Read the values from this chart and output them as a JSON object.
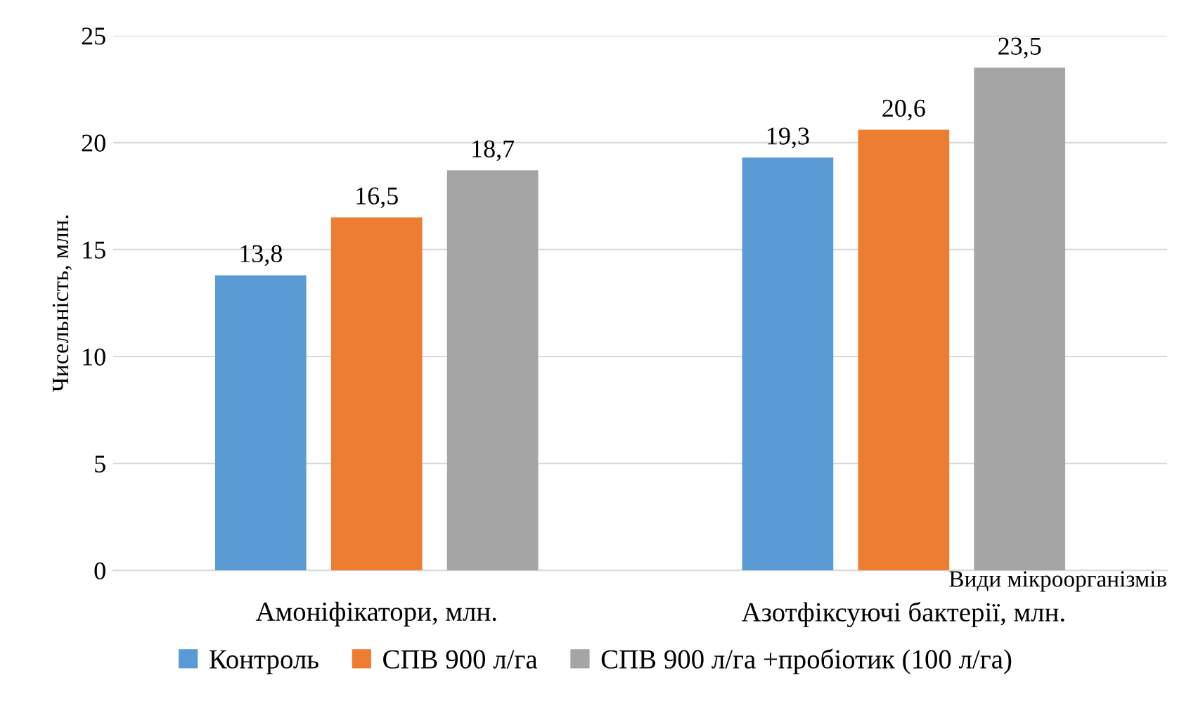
{
  "chart_data": {
    "type": "bar",
    "xlabel": "Види мікроорганізмів",
    "ylabel": "Чисельність, млн.",
    "categories": [
      "Амоніфікатори, млн.",
      "Азотфіксуючі бактерії, млн."
    ],
    "series": [
      {
        "name": "Контроль",
        "color": "#5b9bd5",
        "values": [
          13.8,
          19.3
        ],
        "value_labels": [
          "13,8",
          "19,3"
        ]
      },
      {
        "name": "СПВ 900 л/га",
        "color": "#ed7d31",
        "values": [
          16.5,
          20.6
        ],
        "value_labels": [
          "16,5",
          "20,6"
        ]
      },
      {
        "name": "СПВ 900 л/га +пробіотик (100 л/га)",
        "color": "#a5a5a5",
        "values": [
          18.7,
          23.5
        ],
        "value_labels": [
          "18,7",
          "23,5"
        ]
      }
    ],
    "ylim": [
      0,
      25
    ],
    "yticks": [
      0,
      5,
      10,
      15,
      20,
      25
    ],
    "grid": "y",
    "legend": "bottom"
  }
}
